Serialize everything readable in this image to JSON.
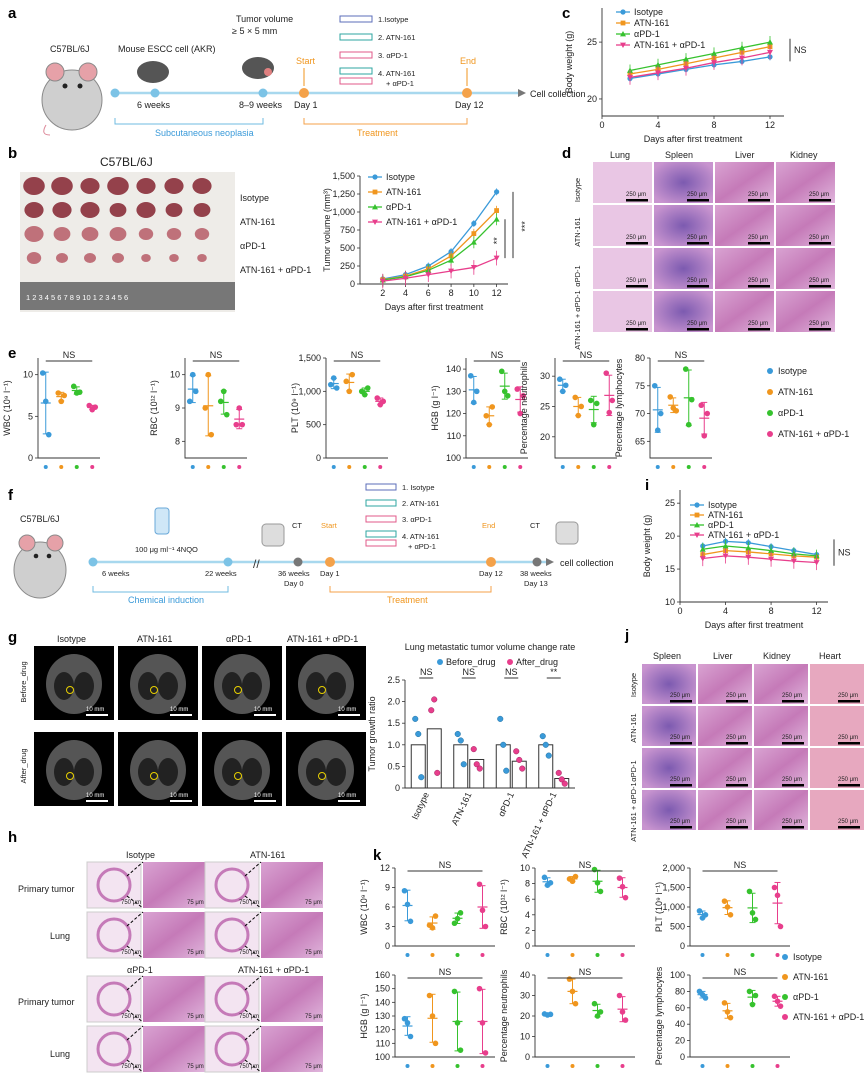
{
  "colors": {
    "isotype": "#3a9ad9",
    "atn161": "#f0961e",
    "apd1": "#36c22e",
    "combo": "#e83e8c",
    "timeline": "#a8d8ee",
    "treatment": "#f4a24a",
    "axis": "#333333",
    "tissue": "#c57ab8",
    "scan": "#555555"
  },
  "panel_a": {
    "label": "a",
    "mouse": "C57BL/6J",
    "injection": "Mouse ESCC cell (AKR)",
    "tumor_note_1": "Tumor volume",
    "tumor_note_2": "≥ 5 × 5 mm",
    "t1": "6 weeks",
    "t2": "8–9 weeks",
    "day1": "Day 1",
    "day12": "Day 12",
    "start": "Start",
    "end": "End",
    "end_label": "Cell collection",
    "phase1": "Subcutaneous neoplasia",
    "phase2": "Treatment",
    "drugs": [
      "1.Isotype",
      "2. ATN-161",
      "3. αPD-1",
      "4. ATN-161",
      "+ αPD-1"
    ]
  },
  "panel_b": {
    "label": "b",
    "title": "C57BL/6J",
    "rows": [
      "Isotype",
      "ATN-161",
      "αPD-1",
      "ATN-161 + αPD-1"
    ],
    "ruler": "1 2 3 4 5 6 7 8 9 10 1 2 3 4 5 6"
  },
  "panel_d": {
    "label": "d",
    "cols": [
      "Lung",
      "Spleen",
      "Liver",
      "Kidney"
    ],
    "rows": [
      "Isotype",
      "ATN-161",
      "αPD-1",
      "ATN-161 + αPD-1"
    ],
    "scale": "250 μm"
  },
  "panel_f": {
    "label": "f",
    "mouse": "C57BL/6J",
    "dose": "100 μg ml⁻¹ 4NQO",
    "t1": "6 weeks",
    "t2": "22 weeks",
    "ct": "CT",
    "t3": "36 weeks",
    "d0": "Day 0",
    "day1": "Day 1",
    "start": "Start",
    "end": "End",
    "day12": "Day 12",
    "t4": "38 weeks",
    "d13": "Day 13",
    "end_label": "cell collection",
    "phase1": "Chemical induction",
    "phase2": "Treatment",
    "drugs": [
      "1. Isotype",
      "2. ATN-161",
      "3. αPD-1",
      "4. ATN-161",
      "+ αPD-1"
    ]
  },
  "panel_g": {
    "label": "g",
    "cols": [
      "Isotype",
      "ATN-161",
      "αPD-1",
      "ATN-161 + αPD-1"
    ],
    "rows": [
      "Before_drug",
      "After_drug"
    ],
    "scale": "10 mm"
  },
  "panel_j": {
    "label": "j",
    "cols": [
      "Spleen",
      "Liver",
      "Kidney",
      "Heart"
    ],
    "rows": [
      "Isotype",
      "ATN-161",
      "αPD-1",
      "ATN-161 + αPD-1"
    ],
    "scale": "250 μm"
  },
  "panel_h": {
    "label": "h",
    "groups": [
      "Isotype",
      "ATN-161",
      "αPD-1",
      "ATN-161 + αPD-1"
    ],
    "rows": [
      "Primary tumor",
      "Lung"
    ],
    "scale1": "750 μm",
    "scale2": "75 μm"
  },
  "panels": {
    "c": "c",
    "e": "e",
    "i": "i",
    "k": "k"
  },
  "legend": {
    "isotype": "Isotype",
    "atn161": "ATN-161",
    "apd1": "αPD-1",
    "combo": "ATN-161 + αPD-1"
  },
  "chart_data": [
    {
      "id": "c",
      "type": "line",
      "xlabel": "Days after first treatment",
      "ylabel": "Body weight (g)",
      "xlim": [
        0,
        13
      ],
      "ylim": [
        18.5,
        28
      ],
      "xticks": [
        0,
        4,
        8,
        12
      ],
      "yticks": [
        20,
        25
      ],
      "x": [
        2,
        4,
        6,
        8,
        10,
        12
      ],
      "series": [
        {
          "name": "Isotype",
          "values": [
            21.8,
            22.2,
            22.6,
            23.0,
            23.3,
            23.7
          ]
        },
        {
          "name": "ATN-161",
          "values": [
            22.2,
            22.6,
            23.1,
            23.6,
            24.1,
            24.6
          ]
        },
        {
          "name": "αPD-1",
          "values": [
            22.5,
            23.0,
            23.5,
            24.0,
            24.5,
            25.0
          ]
        },
        {
          "name": "ATN-161 + αPD-1",
          "values": [
            21.9,
            22.3,
            22.7,
            23.2,
            23.6,
            24.1
          ]
        }
      ],
      "annotation": "NS"
    },
    {
      "id": "b",
      "type": "line",
      "xlabel": "Days after first treatment",
      "ylabel": "Tumor volume (mm³)",
      "xlim": [
        0,
        13
      ],
      "ylim": [
        0,
        1500
      ],
      "xticks": [
        2,
        4,
        6,
        8,
        10,
        12
      ],
      "yticks": [
        0,
        250,
        500,
        750,
        1000,
        1250,
        1500
      ],
      "ytick_labels": [
        "0",
        "250",
        "500",
        "750",
        "1,000",
        "1,250",
        "1,500"
      ],
      "x": [
        2,
        4,
        6,
        8,
        10,
        12
      ],
      "series": [
        {
          "name": "Isotype",
          "values": [
            70,
            130,
            250,
            450,
            840,
            1280
          ]
        },
        {
          "name": "ATN-161",
          "values": [
            60,
            110,
            210,
            390,
            700,
            1020
          ]
        },
        {
          "name": "αPD-1",
          "values": [
            55,
            100,
            190,
            330,
            580,
            900
          ]
        },
        {
          "name": "ATN-161 + αPD-1",
          "values": [
            40,
            80,
            130,
            180,
            230,
            360
          ]
        }
      ],
      "annotations": [
        "**",
        "***"
      ]
    },
    {
      "id": "e1",
      "type": "scatter",
      "ylabel": "WBC (10⁹ l⁻¹)",
      "ylim": [
        0,
        12
      ],
      "yticks": [
        0,
        5,
        10
      ],
      "ytick_labels": [
        "0",
        "5",
        "10"
      ],
      "ns": "NS",
      "groups": [
        [
          10.2,
          6.8,
          2.8
        ],
        [
          7.8,
          6.8,
          7.5
        ],
        [
          8.6,
          7.8,
          7.9
        ],
        [
          6.3,
          5.8,
          6.1
        ]
      ]
    },
    {
      "id": "e2",
      "type": "scatter",
      "ylabel": "RBC (10¹² l⁻¹)",
      "ylim": [
        7.5,
        10.5
      ],
      "yticks": [
        8,
        9,
        10
      ],
      "ytick_labels": [
        "8",
        "9",
        "10"
      ],
      "ns": "NS",
      "groups": [
        [
          9.2,
          10.0,
          9.5
        ],
        [
          9.0,
          10.0,
          8.2
        ],
        [
          9.2,
          9.5,
          8.8
        ],
        [
          8.5,
          9.0,
          8.5
        ]
      ]
    },
    {
      "id": "e3",
      "type": "scatter",
      "ylabel": "PLT (10⁹ l⁻¹)",
      "ylim": [
        0,
        1500
      ],
      "yticks": [
        0,
        500,
        1000,
        1500
      ],
      "ytick_labels": [
        "0",
        "500",
        "1,000",
        "1,500"
      ],
      "ns": "NS",
      "groups": [
        [
          1100,
          1200,
          1050
        ],
        [
          1150,
          1000,
          1250
        ],
        [
          1000,
          950,
          1050
        ],
        [
          900,
          800,
          850
        ]
      ]
    },
    {
      "id": "e4",
      "type": "scatter",
      "ylabel": "HGB (g l⁻¹)",
      "ylim": [
        100,
        145
      ],
      "yticks": [
        100,
        110,
        120,
        130,
        140
      ],
      "ytick_labels": [
        "100",
        "110",
        "120",
        "130",
        "140"
      ],
      "ns": "NS",
      "groups": [
        [
          137,
          125,
          130
        ],
        [
          119,
          115,
          123
        ],
        [
          139,
          130,
          128
        ],
        [
          131,
          120,
          128
        ]
      ]
    },
    {
      "id": "e5",
      "type": "scatter",
      "ylabel": "Percentage neutrophils",
      "ylim": [
        16.5,
        33
      ],
      "yticks": [
        20,
        25,
        30
      ],
      "ytick_labels": [
        "20",
        "25",
        "30"
      ],
      "ns": "NS",
      "groups": [
        [
          29.5,
          27.5,
          28.5
        ],
        [
          26.5,
          23.5,
          25.0
        ],
        [
          26.0,
          22.0,
          25.5
        ],
        [
          30.5,
          24.0,
          26.0
        ]
      ]
    },
    {
      "id": "e6",
      "type": "scatter",
      "ylabel": "Percentage lymphocytes",
      "ylim": [
        62,
        80
      ],
      "yticks": [
        65,
        70,
        75,
        80
      ],
      "ytick_labels": [
        "65",
        "70",
        "75",
        "80"
      ],
      "ns": "NS",
      "groups": [
        [
          75,
          67,
          70
        ],
        [
          73,
          71,
          70.5
        ],
        [
          78,
          68,
          72.5
        ],
        [
          71.5,
          66,
          70
        ]
      ]
    },
    {
      "id": "i",
      "type": "line",
      "xlabel": "Days after first treatment",
      "ylabel": "Body weight (g)",
      "xlim": [
        0,
        13
      ],
      "ylim": [
        10,
        27
      ],
      "xticks": [
        0,
        4,
        8,
        12
      ],
      "yticks": [
        10,
        15,
        20,
        25
      ],
      "x": [
        2,
        4,
        6,
        8,
        10,
        12
      ],
      "series": [
        {
          "name": "Isotype",
          "values": [
            18.5,
            19.2,
            19.0,
            18.4,
            17.8,
            17.2
          ]
        },
        {
          "name": "ATN-161",
          "values": [
            17.2,
            17.8,
            17.6,
            17.3,
            17.0,
            16.8
          ]
        },
        {
          "name": "αPD-1",
          "values": [
            18.0,
            18.5,
            18.2,
            17.8,
            17.3,
            17.0
          ]
        },
        {
          "name": "ATN-161 + αPD-1",
          "values": [
            16.6,
            17.0,
            16.8,
            16.5,
            16.2,
            16.0
          ]
        }
      ],
      "annotation": "NS"
    },
    {
      "id": "g",
      "type": "bar",
      "title": "Lung metastatic tumor volume change rate",
      "ylabel": "Tumor growth ratio",
      "ylim": [
        0,
        2.5
      ],
      "yticks": [
        0,
        0.5,
        1.0,
        1.5,
        2.0,
        2.5
      ],
      "ytick_labels": [
        "0",
        "0.5",
        "1.0",
        "1.5",
        "2.0",
        "2.5"
      ],
      "categories": [
        "Isotype",
        "ATN-161",
        "αPD-1",
        "ATN-161 + αPD-1"
      ],
      "series": [
        {
          "name": "Before_drug",
          "values": [
            1.0,
            1.0,
            1.0,
            1.0
          ]
        },
        {
          "name": "After_drug",
          "values": [
            1.37,
            0.66,
            0.62,
            0.22
          ]
        }
      ],
      "points_before": [
        [
          1.6,
          1.25,
          0.25
        ],
        [
          1.25,
          1.1,
          0.55
        ],
        [
          1.6,
          1.0,
          0.4
        ],
        [
          1.2,
          1.0,
          0.75
        ]
      ],
      "points_after": [
        [
          1.8,
          2.05,
          0.35
        ],
        [
          0.9,
          0.55,
          0.45
        ],
        [
          0.85,
          0.65,
          0.45
        ],
        [
          0.35,
          0.2,
          0.1
        ]
      ],
      "significance": [
        "NS",
        "NS",
        "NS",
        "**"
      ]
    },
    {
      "id": "k1",
      "type": "scatter",
      "ylabel": "WBC (10⁹ l⁻¹)",
      "ylim": [
        0,
        12
      ],
      "yticks": [
        0,
        3,
        6,
        9,
        12
      ],
      "ytick_labels": [
        "0",
        "3",
        "6",
        "9",
        "12"
      ],
      "ns": "NS",
      "groups": [
        [
          8.5,
          6.4,
          3.8
        ],
        [
          3.2,
          2.8,
          4.6
        ],
        [
          3.5,
          4.2,
          5.1
        ],
        [
          9.5,
          5.5,
          3.0
        ]
      ]
    },
    {
      "id": "k2",
      "type": "scatter",
      "ylabel": "RBC (10¹² l⁻¹)",
      "ylim": [
        0,
        10
      ],
      "yticks": [
        0,
        2,
        4,
        6,
        8,
        10
      ],
      "ytick_labels": [
        "0",
        "2",
        "4",
        "6",
        "8",
        "10"
      ],
      "ns": "NS",
      "groups": [
        [
          8.8,
          7.8,
          8.1
        ],
        [
          8.6,
          8.3,
          8.9
        ],
        [
          9.8,
          8.1,
          7.0
        ],
        [
          8.7,
          7.6,
          6.2
        ]
      ]
    },
    {
      "id": "k3",
      "type": "scatter",
      "ylabel": "PLT (10⁹ l⁻¹)",
      "ylim": [
        0,
        2000
      ],
      "yticks": [
        0,
        500,
        1000,
        1500,
        2000
      ],
      "ytick_labels": [
        "0",
        "500",
        "1,000",
        "1,500",
        "2,000"
      ],
      "ns": "NS",
      "groups": [
        [
          900,
          720,
          800
        ],
        [
          1150,
          1000,
          800
        ],
        [
          1400,
          850,
          680
        ],
        [
          1500,
          1300,
          500
        ]
      ]
    },
    {
      "id": "k4",
      "type": "scatter",
      "ylabel": "HGB (g l⁻¹)",
      "ylim": [
        100,
        160
      ],
      "yticks": [
        100,
        110,
        120,
        130,
        140,
        150,
        160
      ],
      "ytick_labels": [
        "100",
        "110",
        "120",
        "130",
        "140",
        "150",
        "160"
      ],
      "ns": "NS",
      "groups": [
        [
          128,
          125,
          115
        ],
        [
          145,
          130,
          110
        ],
        [
          148,
          125,
          105
        ],
        [
          150,
          125,
          103
        ]
      ]
    },
    {
      "id": "k5",
      "type": "scatter",
      "ylabel": "Percentage neutrophils",
      "ylim": [
        0,
        40
      ],
      "yticks": [
        0,
        10,
        20,
        30,
        40
      ],
      "ytick_labels": [
        "0",
        "10",
        "20",
        "30",
        "40"
      ],
      "ns": "NS",
      "groups": [
        [
          21,
          20.5,
          20.8
        ],
        [
          38,
          32,
          26
        ],
        [
          26,
          20,
          22
        ],
        [
          30,
          22,
          18
        ]
      ]
    },
    {
      "id": "k6",
      "type": "scatter",
      "ylabel": "Percentage lymphocytes",
      "ylim": [
        0,
        100
      ],
      "yticks": [
        0,
        20,
        40,
        60,
        80,
        100
      ],
      "ytick_labels": [
        "0",
        "20",
        "40",
        "60",
        "80",
        "100"
      ],
      "ns": "NS",
      "groups": [
        [
          80,
          76,
          72
        ],
        [
          66,
          55,
          48
        ],
        [
          80,
          64,
          75
        ],
        [
          74,
          68,
          62
        ]
      ]
    }
  ]
}
